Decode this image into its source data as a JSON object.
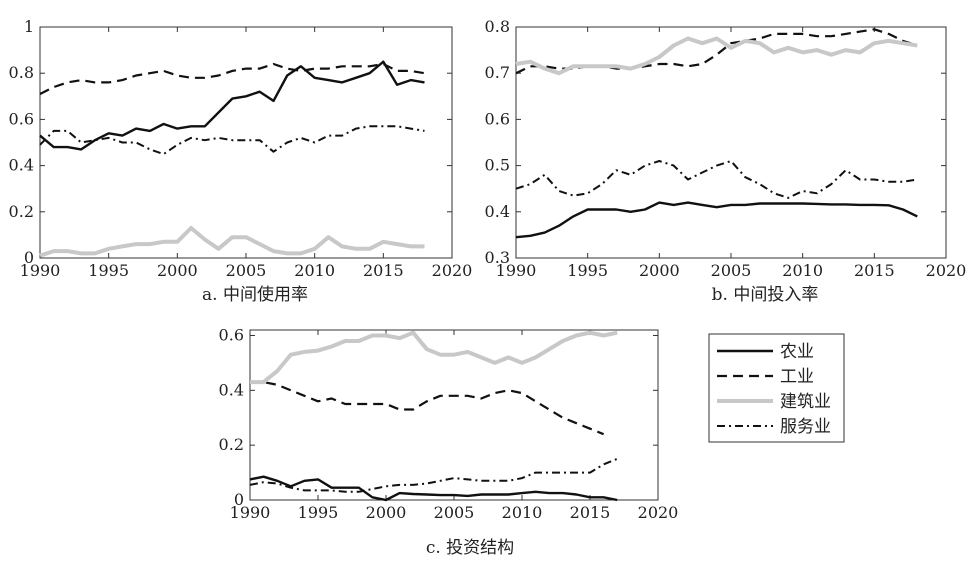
{
  "legend": {
    "entries": [
      {
        "name": "农业",
        "color": "#111111",
        "dash": "none",
        "width": 2.4
      },
      {
        "name": "工业",
        "color": "#111111",
        "dash": "10,6",
        "width": 2.2
      },
      {
        "name": "建筑业",
        "color": "#c8c8c8",
        "dash": "none",
        "width": 4
      },
      {
        "name": "服务业",
        "color": "#111111",
        "dash": "8,4,2,4",
        "width": 2
      }
    ]
  },
  "chart_data": [
    {
      "type": "line",
      "caption": "a. 中间使用率",
      "xlim": [
        1990,
        2020
      ],
      "ylim": [
        0,
        1
      ],
      "xticks": [
        1990,
        1995,
        2000,
        2005,
        2010,
        2015,
        2020
      ],
      "yticks": [
        0,
        0.2,
        0.4,
        0.6,
        0.8,
        1
      ],
      "ytick_labels": [
        "0",
        "0.2",
        "0.4",
        "0.6",
        "0.8",
        "1"
      ],
      "x": [
        1990,
        1991,
        1992,
        1993,
        1994,
        1995,
        1996,
        1997,
        1998,
        1999,
        2000,
        2001,
        2002,
        2003,
        2004,
        2005,
        2006,
        2007,
        2008,
        2009,
        2010,
        2011,
        2012,
        2013,
        2014,
        2015,
        2016,
        2017,
        2018
      ],
      "series": [
        {
          "name": "农业",
          "values": [
            0.53,
            0.48,
            0.48,
            0.47,
            0.51,
            0.54,
            0.53,
            0.56,
            0.55,
            0.58,
            0.56,
            0.57,
            0.57,
            0.63,
            0.69,
            0.7,
            0.72,
            0.68,
            0.79,
            0.83,
            0.78,
            0.77,
            0.76,
            0.78,
            0.8,
            0.85,
            0.75,
            0.77,
            0.76
          ]
        },
        {
          "name": "工业",
          "values": [
            0.71,
            0.74,
            0.76,
            0.77,
            0.76,
            0.76,
            0.77,
            0.79,
            0.8,
            0.81,
            0.79,
            0.78,
            0.78,
            0.79,
            0.81,
            0.82,
            0.82,
            0.84,
            0.82,
            0.81,
            0.82,
            0.82,
            0.83,
            0.83,
            0.83,
            0.84,
            0.81,
            0.81,
            0.8
          ]
        },
        {
          "name": "建筑业",
          "values": [
            0.01,
            0.03,
            0.03,
            0.02,
            0.02,
            0.04,
            0.05,
            0.06,
            0.06,
            0.07,
            0.07,
            0.13,
            0.08,
            0.04,
            0.09,
            0.09,
            0.06,
            0.03,
            0.02,
            0.02,
            0.04,
            0.09,
            0.05,
            0.04,
            0.04,
            0.07,
            0.06,
            0.05,
            0.05
          ]
        },
        {
          "name": "服务业",
          "values": [
            0.49,
            0.55,
            0.55,
            0.5,
            0.51,
            0.52,
            0.5,
            0.5,
            0.47,
            0.45,
            0.49,
            0.52,
            0.51,
            0.52,
            0.51,
            0.51,
            0.51,
            0.46,
            0.5,
            0.52,
            0.5,
            0.53,
            0.53,
            0.56,
            0.57,
            0.57,
            0.57,
            0.56,
            0.55
          ]
        }
      ]
    },
    {
      "type": "line",
      "caption": "b. 中间投入率",
      "xlim": [
        1990,
        2020
      ],
      "ylim": [
        0.3,
        0.8
      ],
      "xticks": [
        1990,
        1995,
        2000,
        2005,
        2010,
        2015,
        2020
      ],
      "yticks": [
        0.3,
        0.4,
        0.5,
        0.6,
        0.7,
        0.8
      ],
      "ytick_labels": [
        "0.3",
        "0.4",
        "0.5",
        "0.6",
        "0.7",
        "0.8"
      ],
      "x": [
        1990,
        1991,
        1992,
        1993,
        1994,
        1995,
        1996,
        1997,
        1998,
        1999,
        2000,
        2001,
        2002,
        2003,
        2004,
        2005,
        2006,
        2007,
        2008,
        2009,
        2010,
        2011,
        2012,
        2013,
        2014,
        2015,
        2016,
        2017,
        2018
      ],
      "series": [
        {
          "name": "农业",
          "values": [
            0.345,
            0.348,
            0.355,
            0.37,
            0.39,
            0.405,
            0.405,
            0.405,
            0.4,
            0.405,
            0.42,
            0.415,
            0.42,
            0.415,
            0.41,
            0.415,
            0.415,
            0.418,
            0.418,
            0.418,
            0.418,
            0.417,
            0.416,
            0.416,
            0.415,
            0.415,
            0.414,
            0.405,
            0.39
          ]
        },
        {
          "name": "工业",
          "values": [
            0.7,
            0.715,
            0.715,
            0.71,
            0.71,
            0.715,
            0.715,
            0.71,
            0.71,
            0.715,
            0.72,
            0.72,
            0.715,
            0.72,
            0.74,
            0.765,
            0.77,
            0.775,
            0.785,
            0.785,
            0.785,
            0.78,
            0.78,
            0.785,
            0.79,
            0.795,
            0.785,
            0.77,
            0.76
          ]
        },
        {
          "name": "建筑业",
          "values": [
            0.72,
            0.725,
            0.71,
            0.7,
            0.715,
            0.715,
            0.715,
            0.715,
            0.71,
            0.72,
            0.735,
            0.76,
            0.775,
            0.765,
            0.775,
            0.755,
            0.77,
            0.765,
            0.745,
            0.755,
            0.745,
            0.75,
            0.74,
            0.75,
            0.745,
            0.765,
            0.77,
            0.765,
            0.76
          ]
        },
        {
          "name": "服务业",
          "values": [
            0.45,
            0.46,
            0.48,
            0.445,
            0.435,
            0.44,
            0.46,
            0.49,
            0.48,
            0.5,
            0.51,
            0.5,
            0.47,
            0.485,
            0.5,
            0.51,
            0.475,
            0.46,
            0.44,
            0.43,
            0.445,
            0.44,
            0.46,
            0.49,
            0.47,
            0.47,
            0.465,
            0.465,
            0.47
          ]
        }
      ]
    },
    {
      "type": "line",
      "caption": "c. 投资结构",
      "xlim": [
        1990,
        2020
      ],
      "ylim": [
        0,
        0.62
      ],
      "xticks": [
        1990,
        1995,
        2000,
        2005,
        2010,
        2015,
        2020
      ],
      "yticks": [
        0,
        0.2,
        0.4,
        0.6
      ],
      "ytick_labels": [
        "0",
        "0.2",
        "0.4",
        "0.6"
      ],
      "x": [
        1990,
        1991,
        1992,
        1993,
        1994,
        1995,
        1996,
        1997,
        1998,
        1999,
        2000,
        2001,
        2002,
        2003,
        2004,
        2005,
        2006,
        2007,
        2008,
        2009,
        2010,
        2011,
        2012,
        2013,
        2014,
        2015,
        2016,
        2017
      ],
      "series": [
        {
          "name": "农业",
          "values": [
            0.075,
            0.085,
            0.07,
            0.05,
            0.07,
            0.075,
            0.045,
            0.045,
            0.045,
            0.01,
            0.0,
            0.025,
            0.022,
            0.02,
            0.018,
            0.018,
            0.015,
            0.02,
            0.02,
            0.02,
            0.025,
            0.03,
            0.025,
            0.025,
            0.02,
            0.01,
            0.01,
            0.0
          ]
        },
        {
          "name": "工业",
          "values": [
            0.43,
            0.43,
            0.42,
            0.4,
            0.38,
            0.36,
            0.37,
            0.35,
            0.35,
            0.35,
            0.35,
            0.33,
            0.33,
            0.36,
            0.38,
            0.38,
            0.38,
            0.37,
            0.39,
            0.4,
            0.39,
            0.36,
            0.33,
            0.3,
            0.28,
            0.26,
            0.24,
            null
          ]
        },
        {
          "name": "建筑业",
          "values": [
            0.43,
            0.43,
            0.47,
            0.53,
            0.54,
            0.545,
            0.56,
            0.58,
            0.58,
            0.6,
            0.6,
            0.59,
            0.61,
            0.55,
            0.53,
            0.53,
            0.54,
            0.52,
            0.5,
            0.52,
            0.5,
            0.52,
            0.55,
            0.58,
            0.6,
            0.61,
            0.6,
            0.61
          ]
        },
        {
          "name": "服务业",
          "values": [
            0.055,
            0.065,
            0.06,
            0.045,
            0.035,
            0.035,
            0.035,
            0.03,
            0.03,
            0.04,
            0.05,
            0.055,
            0.055,
            0.06,
            0.07,
            0.08,
            0.075,
            0.07,
            0.07,
            0.07,
            0.08,
            0.1,
            0.1,
            0.1,
            0.1,
            0.1,
            0.13,
            0.15
          ]
        }
      ]
    }
  ]
}
